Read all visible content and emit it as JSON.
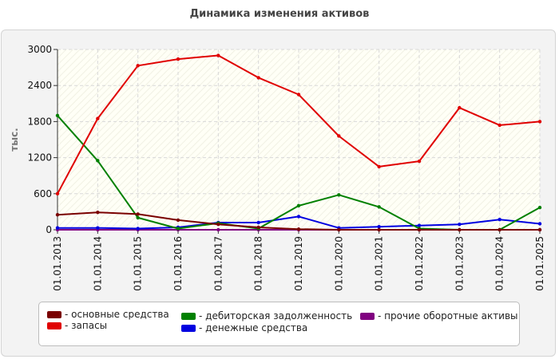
{
  "chart_data": {
    "type": "line",
    "title": "Динамика изменения активов",
    "ylabel": "тыс.",
    "xlabel": "",
    "ylim": [
      0,
      3000
    ],
    "yticks": [
      0,
      600,
      1200,
      1800,
      2400,
      3000
    ],
    "grid": true,
    "legend_position": "bottom",
    "categories": [
      "01.01.2013",
      "01.01.2014",
      "01.01.2015",
      "01.01.2016",
      "01.01.2017",
      "01.01.2018",
      "01.01.2019",
      "01.01.2020",
      "01.01.2021",
      "01.01.2022",
      "01.01.2023",
      "01.01.2024",
      "01.01.2025"
    ],
    "series": [
      {
        "name": "основные средства",
        "color": "#7a0000",
        "values": [
          250,
          290,
          260,
          160,
          90,
          40,
          10,
          0,
          0,
          0,
          0,
          0,
          0
        ]
      },
      {
        "name": "запасы",
        "color": "#e00000",
        "values": [
          600,
          1850,
          2730,
          2840,
          2900,
          2530,
          2250,
          1560,
          1050,
          1140,
          2030,
          1740,
          1800
        ]
      },
      {
        "name": "дебиторская задолженность",
        "color": "#008000",
        "values": [
          1900,
          1150,
          200,
          20,
          110,
          20,
          400,
          580,
          380,
          20,
          0,
          0,
          370
        ]
      },
      {
        "name": "денежные средства",
        "color": "#0000e0",
        "values": [
          30,
          30,
          20,
          40,
          120,
          120,
          220,
          30,
          50,
          70,
          90,
          170,
          100
        ]
      },
      {
        "name": "прочие оборотные активы",
        "color": "#800080",
        "values": [
          0,
          0,
          0,
          0,
          0,
          0,
          0,
          0,
          0,
          0,
          0,
          0,
          0
        ]
      }
    ]
  },
  "legend": {
    "items": [
      {
        "label": "- основные средства",
        "color": "#7a0000"
      },
      {
        "label": "- запасы",
        "color": "#e00000"
      },
      {
        "label": "- дебиторская задолженность",
        "color": "#008000"
      },
      {
        "label": "- денежные средства",
        "color": "#0000e0"
      },
      {
        "label": "- прочие оборотные активы",
        "color": "#800080"
      }
    ]
  }
}
